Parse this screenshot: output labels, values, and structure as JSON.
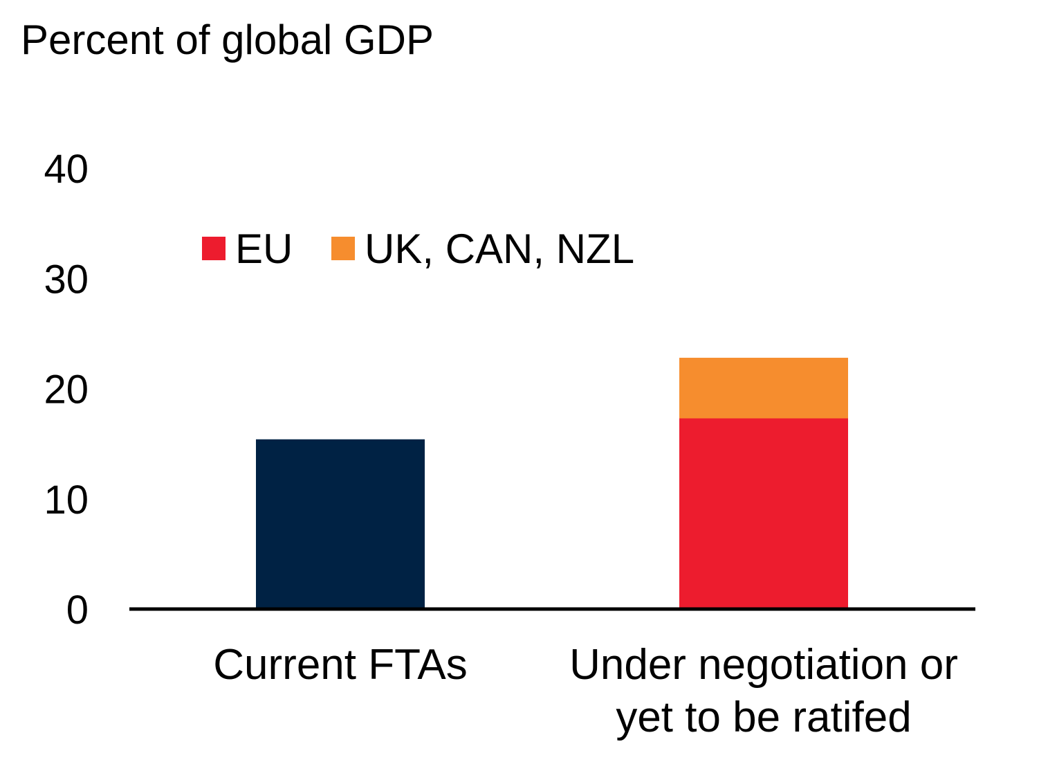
{
  "chart_data": {
    "type": "bar",
    "stacked": true,
    "ylabel": "Percent of global GDP",
    "ylim": [
      0,
      40
    ],
    "yticks": [
      0,
      10,
      20,
      30,
      40
    ],
    "grid": false,
    "legend_position": "top-left",
    "categories": [
      [
        "Current FTAs"
      ],
      [
        "Under negotiation or",
        "yet to be ratifed"
      ]
    ],
    "series": [
      {
        "values": [
          15.4,
          0
        ],
        "color": "#002244"
      },
      {
        "name": "EU",
        "values": [
          0,
          17.3
        ],
        "color": "#ED1C2E"
      },
      {
        "name": "UK, CAN, NZL",
        "values": [
          0,
          5.5
        ],
        "color": "#F68D2E"
      }
    ],
    "axis_color": "#000000"
  }
}
